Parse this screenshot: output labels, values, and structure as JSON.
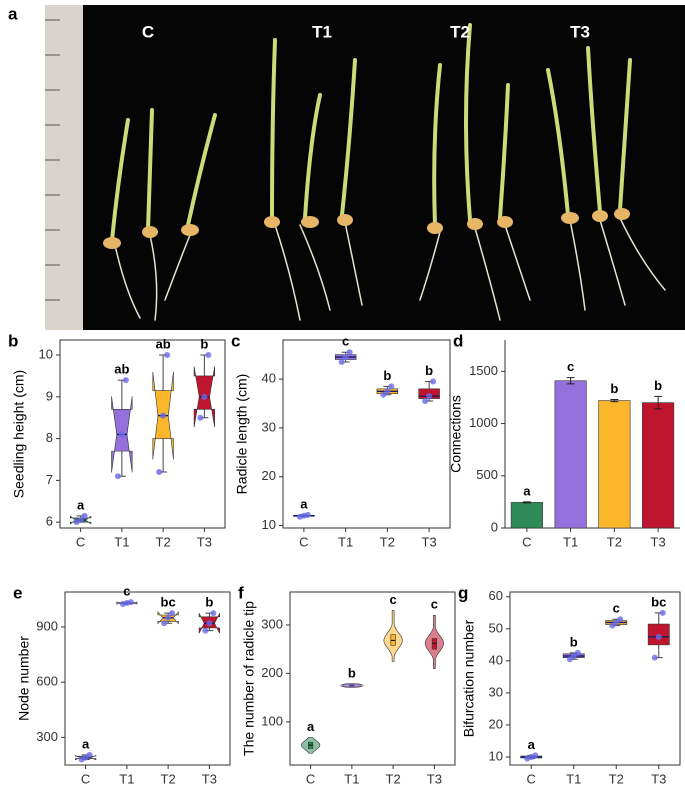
{
  "photo": {
    "panel_label": "a",
    "labels": [
      "C",
      "T1",
      "T2",
      "T3"
    ]
  },
  "chart_data": [
    {
      "type": "box",
      "panel_label": "b",
      "y_label": "Seedling height (cm)",
      "notched": true,
      "categories": [
        "C",
        "T1",
        "T2",
        "T3"
      ],
      "colors": [
        "#2e8b57",
        "#9370db",
        "#fbb62c",
        "#c0152f"
      ],
      "ylim": [
        5.86,
        10.36
      ],
      "yticks": [
        6,
        7,
        8,
        9,
        10
      ],
      "boxes": [
        {
          "min": 6.0,
          "q1": 6.0,
          "median": 6.05,
          "q3": 6.1,
          "max": 6.15,
          "points": [
            6.0,
            6.05,
            6.15
          ]
        },
        {
          "min": 7.1,
          "q1": 7.7,
          "median": 8.1,
          "q3": 8.7,
          "max": 9.4,
          "points": [
            7.1,
            8.1,
            9.4
          ]
        },
        {
          "min": 7.2,
          "q1": 8.0,
          "median": 8.55,
          "q3": 9.15,
          "max": 10.0,
          "points": [
            7.2,
            8.55,
            10.0
          ]
        },
        {
          "min": 8.5,
          "q1": 8.7,
          "median": 9.0,
          "q3": 9.5,
          "max": 10.0,
          "points": [
            8.5,
            9.0,
            10.0
          ]
        }
      ],
      "significance": [
        "a",
        "ab",
        "ab",
        "b"
      ]
    },
    {
      "type": "box",
      "panel_label": "c",
      "y_label": "Radicle length (cm)",
      "notched": false,
      "categories": [
        "C",
        "T1",
        "T2",
        "T3"
      ],
      "colors": [
        "#2e8b57",
        "#9370db",
        "#fbb62c",
        "#c0152f"
      ],
      "ylim": [
        9.5,
        48
      ],
      "yticks": [
        10,
        20,
        30,
        40
      ],
      "boxes": [
        {
          "min": 11.8,
          "q1": 11.9,
          "median": 12,
          "q3": 12.1,
          "max": 12.2,
          "points": [
            11.8,
            12,
            12.2
          ]
        },
        {
          "min": 43.5,
          "q1": 44,
          "median": 44.5,
          "q3": 45,
          "max": 45.5,
          "points": [
            43.5,
            44.5,
            45.5
          ]
        },
        {
          "min": 36.8,
          "q1": 37,
          "median": 37.5,
          "q3": 38,
          "max": 38.5,
          "points": [
            36.8,
            37.5,
            38.5
          ]
        },
        {
          "min": 35.5,
          "q1": 36,
          "median": 36.5,
          "q3": 38,
          "max": 39.5,
          "points": [
            35.5,
            36.5,
            39.5
          ]
        }
      ],
      "significance": [
        "a",
        "c",
        "b",
        "b"
      ]
    },
    {
      "type": "bar",
      "panel_label": "d",
      "y_label": "Connections",
      "categories": [
        "C",
        "T1",
        "T2",
        "T3"
      ],
      "colors": [
        "#2e8b57",
        "#9370db",
        "#fbb62c",
        "#c0152f"
      ],
      "ylim": [
        0,
        1800
      ],
      "yticks": [
        0,
        500,
        1000,
        1500
      ],
      "values": [
        245,
        1410,
        1220,
        1200
      ],
      "errors": [
        5,
        30,
        10,
        60
      ],
      "significance": [
        "a",
        "c",
        "b",
        "b"
      ]
    },
    {
      "type": "box",
      "panel_label": "e",
      "y_label": "Node number",
      "notched": true,
      "categories": [
        "C",
        "T1",
        "T2",
        "T3"
      ],
      "colors": [
        "#2e8b57",
        "#9370db",
        "#fbb62c",
        "#c0152f"
      ],
      "ylim": [
        150,
        1090
      ],
      "yticks": [
        300,
        600,
        900
      ],
      "boxes": [
        {
          "min": 180,
          "q1": 185,
          "median": 190,
          "q3": 198,
          "max": 205,
          "points": [
            180,
            190,
            205
          ]
        },
        {
          "min": 1025,
          "q1": 1027,
          "median": 1030,
          "q3": 1033,
          "max": 1035,
          "points": [
            1025,
            1030,
            1035
          ]
        },
        {
          "min": 920,
          "q1": 930,
          "median": 950,
          "q3": 965,
          "max": 975,
          "points": [
            920,
            950,
            975
          ]
        },
        {
          "min": 880,
          "q1": 895,
          "median": 920,
          "q3": 955,
          "max": 975,
          "points": [
            880,
            920,
            975
          ]
        }
      ],
      "significance": [
        "a",
        "c",
        "bc",
        "b"
      ]
    },
    {
      "type": "violin",
      "panel_label": "f",
      "y_label": "The number of radicle tip",
      "categories": [
        "C",
        "T1",
        "T2",
        "T3"
      ],
      "colors": [
        "#2e8b57",
        "#9370db",
        "#fbb62c",
        "#c0152f"
      ],
      "ylim": [
        11,
        368
      ],
      "yticks": [
        100,
        200,
        300
      ],
      "boxes": [
        {
          "min": 35,
          "q1": 45,
          "median": 52,
          "q3": 58,
          "max": 68
        },
        {
          "min": 172,
          "q1": 174,
          "median": 175,
          "q3": 176,
          "max": 178
        },
        {
          "min": 225,
          "q1": 258,
          "median": 268,
          "q3": 280,
          "max": 330
        },
        {
          "min": 210,
          "q1": 250,
          "median": 262,
          "q3": 272,
          "max": 320
        }
      ],
      "significance": [
        "a",
        "b",
        "c",
        "c"
      ]
    },
    {
      "type": "box",
      "panel_label": "g",
      "y_label": "Bifurcation number",
      "notched": false,
      "categories": [
        "C",
        "T1",
        "T2",
        "T3"
      ],
      "colors": [
        "#2e8b57",
        "#9370db",
        "#fbb62c",
        "#c0152f"
      ],
      "ylim": [
        7.5,
        61.5
      ],
      "yticks": [
        10,
        20,
        30,
        40,
        50,
        60
      ],
      "boxes": [
        {
          "min": 9.5,
          "q1": 9.7,
          "median": 10,
          "q3": 10.3,
          "max": 10.5,
          "points": [
            9.5,
            10,
            10.5
          ]
        },
        {
          "min": 40.5,
          "q1": 41,
          "median": 41.5,
          "q3": 42.2,
          "max": 42.5,
          "points": [
            40.5,
            41.5,
            42.5
          ]
        },
        {
          "min": 51,
          "q1": 51.3,
          "median": 52,
          "q3": 52.6,
          "max": 53,
          "points": [
            51,
            52,
            53
          ]
        },
        {
          "min": 41,
          "q1": 45,
          "median": 47.5,
          "q3": 51.5,
          "max": 55,
          "points": [
            41,
            47.5,
            55
          ]
        }
      ],
      "significance": [
        "a",
        "b",
        "c",
        "bc"
      ]
    }
  ]
}
